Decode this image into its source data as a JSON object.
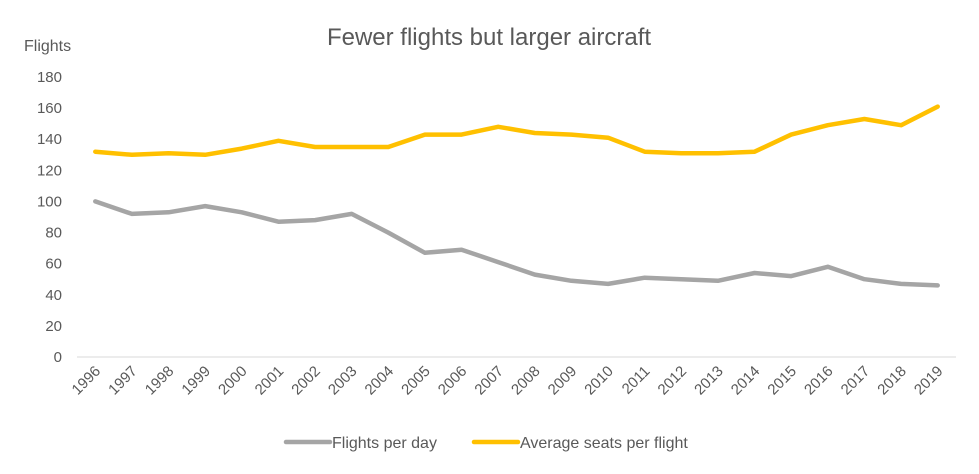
{
  "chart_data": {
    "type": "line",
    "title": "Fewer flights but larger aircraft",
    "xlabel": "",
    "ylabel": "Flights",
    "ylim": [
      0,
      180
    ],
    "yticks": [
      0,
      20,
      40,
      60,
      80,
      100,
      120,
      140,
      160,
      180
    ],
    "grid": false,
    "legend_position": "bottom",
    "categories": [
      "1996",
      "1997",
      "1998",
      "1999",
      "2000",
      "2001",
      "2002",
      "2003",
      "2004",
      "2005",
      "2006",
      "2007",
      "2008",
      "2009",
      "2010",
      "2011",
      "2012",
      "2013",
      "2014",
      "2015",
      "2016",
      "2017",
      "2018",
      "2019"
    ],
    "series": [
      {
        "name": "Flights per day",
        "color": "#A5A5A5",
        "values": [
          100,
          92,
          93,
          97,
          93,
          87,
          88,
          92,
          80,
          67,
          69,
          61,
          53,
          49,
          47,
          51,
          50,
          49,
          54,
          52,
          58,
          50,
          47,
          46
        ]
      },
      {
        "name": "Average seats per flight",
        "color": "#FFC000",
        "values": [
          132,
          130,
          131,
          130,
          134,
          139,
          135,
          135,
          135,
          143,
          143,
          148,
          144,
          143,
          141,
          132,
          131,
          131,
          132,
          143,
          149,
          153,
          149,
          161
        ]
      }
    ]
  }
}
